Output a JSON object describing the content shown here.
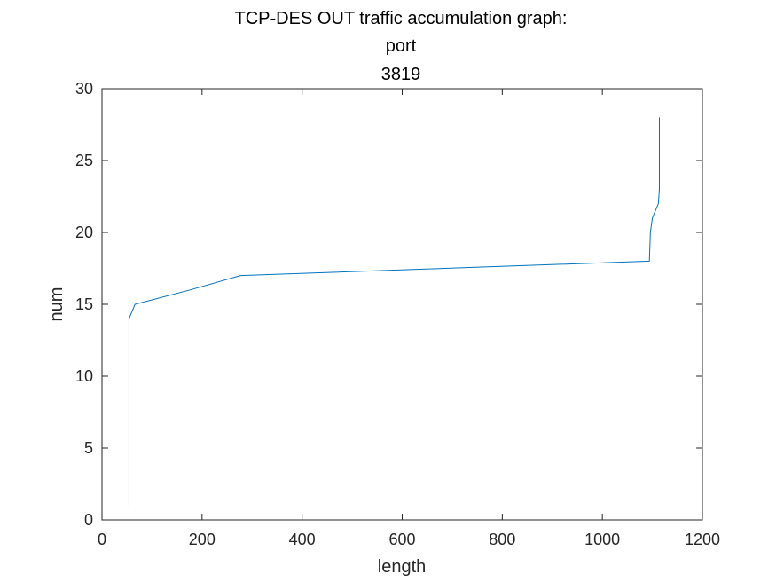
{
  "chart_data": {
    "type": "line",
    "title_lines": [
      "TCP-DES OUT traffic accumulation graph:",
      "port",
      "3819"
    ],
    "xlabel": "length",
    "ylabel": "num",
    "xlim": [
      0,
      1200
    ],
    "ylim": [
      0,
      30
    ],
    "x_ticks": [
      0,
      200,
      400,
      600,
      800,
      1000,
      1200
    ],
    "y_ticks": [
      0,
      5,
      10,
      15,
      20,
      25,
      30
    ],
    "grid": false,
    "line_color": "#0072BD",
    "axis_color": "#262626",
    "series": [
      {
        "x": [
          54,
          54,
          54,
          54,
          54,
          54,
          54,
          54,
          54,
          54,
          54,
          54,
          54,
          54,
          66,
          176,
          277,
          1094,
          1095,
          1096,
          1100,
          1112,
          1114,
          1114,
          1114,
          1114,
          1114,
          1114
        ],
        "y": [
          1,
          2,
          3,
          4,
          5,
          6,
          7,
          8,
          9,
          10,
          11,
          12,
          13,
          14,
          15,
          16,
          17,
          18,
          19,
          20,
          21,
          22,
          23,
          24,
          25,
          26,
          27,
          28
        ]
      }
    ]
  }
}
